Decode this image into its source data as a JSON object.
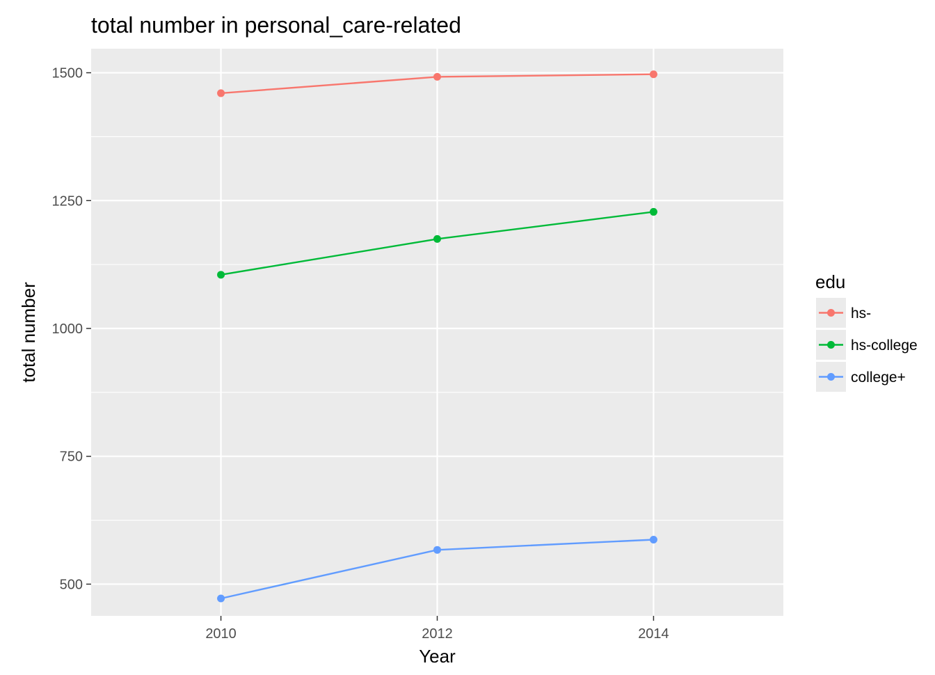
{
  "chart_data": {
    "type": "line",
    "title": "total number in personal_care-related",
    "xlabel": "Year",
    "ylabel": "total number",
    "x": [
      2010,
      2012,
      2014
    ],
    "xlim": [
      2008.8,
      2015.2
    ],
    "ylim": [
      438,
      1547
    ],
    "x_ticks": [
      2010,
      2012,
      2014
    ],
    "y_ticks": [
      500,
      750,
      1000,
      1250,
      1500
    ],
    "y_minor_ticks": [
      625,
      875,
      1125,
      1375
    ],
    "grid": true,
    "legend": {
      "title": "edu",
      "position": "right"
    },
    "series": [
      {
        "name": "hs-",
        "color": "#F8766D",
        "values": [
          1460,
          1492,
          1497
        ]
      },
      {
        "name": "hs-college",
        "color": "#00BA38",
        "values": [
          1105,
          1175,
          1228
        ]
      },
      {
        "name": "college+",
        "color": "#619CFF",
        "values": [
          472,
          567,
          587
        ]
      }
    ]
  },
  "colors": {
    "panel_background": "#EBEBEB",
    "grid_line": "#FFFFFF",
    "tick_text": "#4D4D4D",
    "tick_mark": "#333333"
  }
}
